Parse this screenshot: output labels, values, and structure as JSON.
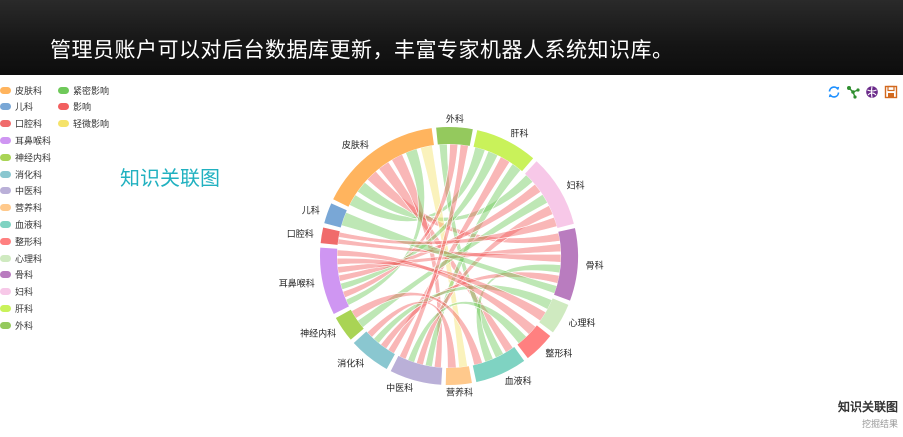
{
  "banner": {
    "title": "管理员账户可以对后台数据库更新，丰富专家机器人系统知识库。"
  },
  "chart_subtitle": "知识关联图",
  "toolbox": [
    {
      "name": "refresh-icon",
      "color": "#1e90ff"
    },
    {
      "name": "force-layout-icon",
      "color": "#2f8f2f"
    },
    {
      "name": "chord-icon",
      "color": "#6a2a8a"
    },
    {
      "name": "save-image-icon",
      "color": "#d2691e"
    }
  ],
  "corner": {
    "title": "知识关联图",
    "subtitle": "挖掘结果"
  },
  "chart_data": {
    "type": "chord",
    "categories": [
      "皮肤科",
      "儿科",
      "口腔科",
      "耳鼻喉科",
      "神经内科",
      "消化科",
      "中医科",
      "营养科",
      "血液科",
      "整形科",
      "心理科",
      "骨科",
      "妇科",
      "肝科",
      "外科"
    ],
    "category_colors": [
      "#ffb45e",
      "#79a7d6",
      "#f06b6b",
      "#cf96f2",
      "#a9d455",
      "#8ac7d0",
      "#bab0d8",
      "#ffc98c",
      "#7fd3c2",
      "#ff8080",
      "#cfeac0",
      "#b97cbf",
      "#f7c8e8",
      "#c9f25a",
      "#94c95d"
    ],
    "legend_categories": [
      "皮肤科",
      "儿科",
      "口腔科",
      "耳鼻喉科",
      "神经内科",
      "消化科",
      "中医科",
      "营养科",
      "血液科",
      "整形科",
      "心理科",
      "骨科",
      "妇科",
      "肝科",
      "外科"
    ],
    "relation_legend": [
      {
        "label": "紧密影响",
        "color": "#6fc95a"
      },
      {
        "label": "影响",
        "color": "#f25f5f"
      },
      {
        "label": "轻微影响",
        "color": "#f5e36a"
      }
    ],
    "arc_weights": [
      24,
      4,
      3,
      13,
      5,
      8,
      10,
      5,
      10,
      6,
      6,
      14,
      14,
      12,
      7
    ],
    "links": [
      {
        "source": "皮肤科",
        "target": "肝科",
        "relation": "紧密影响"
      },
      {
        "source": "皮肤科",
        "target": "妇科",
        "relation": "紧密影响"
      },
      {
        "source": "皮肤科",
        "target": "骨科",
        "relation": "影响"
      },
      {
        "source": "皮肤科",
        "target": "血液科",
        "relation": "影响"
      },
      {
        "source": "皮肤科",
        "target": "中医科",
        "relation": "影响"
      },
      {
        "source": "皮肤科",
        "target": "耳鼻喉科",
        "relation": "紧密影响"
      },
      {
        "source": "皮肤科",
        "target": "营养科",
        "relation": "轻微影响"
      },
      {
        "source": "外科",
        "target": "血液科",
        "relation": "紧密影响"
      },
      {
        "source": "外科",
        "target": "耳鼻喉科",
        "relation": "影响"
      },
      {
        "source": "肝科",
        "target": "耳鼻喉科",
        "relation": "紧密影响"
      },
      {
        "source": "肝科",
        "target": "消化科",
        "relation": "影响"
      },
      {
        "source": "肝科",
        "target": "中医科",
        "relation": "紧密影响"
      },
      {
        "source": "妇科",
        "target": "耳鼻喉科",
        "relation": "影响"
      },
      {
        "source": "妇科",
        "target": "神经内科",
        "relation": "紧密影响"
      },
      {
        "source": "妇科",
        "target": "中医科",
        "relation": "影响"
      },
      {
        "source": "骨科",
        "target": "耳鼻喉科",
        "relation": "影响"
      },
      {
        "source": "骨科",
        "target": "口腔科",
        "relation": "影响"
      },
      {
        "source": "骨科",
        "target": "血液科",
        "relation": "紧密影响"
      },
      {
        "source": "骨科",
        "target": "消化科",
        "relation": "影响"
      },
      {
        "source": "心理科",
        "target": "消化科",
        "relation": "紧密影响"
      },
      {
        "source": "心理科",
        "target": "耳鼻喉科",
        "relation": "影响"
      },
      {
        "source": "整形科",
        "target": "耳鼻喉科",
        "relation": "影响"
      },
      {
        "source": "整形科",
        "target": "中医科",
        "relation": "紧密影响"
      },
      {
        "source": "血液科",
        "target": "神经内科",
        "relation": "影响"
      },
      {
        "source": "儿科",
        "target": "骨科",
        "relation": "紧密影响"
      },
      {
        "source": "口腔科",
        "target": "妇科",
        "relation": "影响"
      },
      {
        "source": "营养科",
        "target": "消化科",
        "relation": "影响"
      },
      {
        "source": "中医科",
        "target": "外科",
        "relation": "影响"
      }
    ]
  }
}
